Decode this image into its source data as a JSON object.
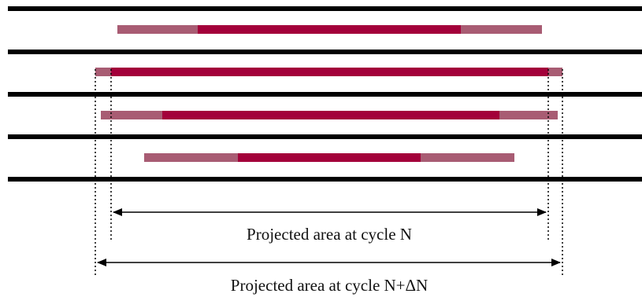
{
  "colors": {
    "plate": "#000000",
    "crack_current": "#a3003a",
    "crack_growth": "#a85c73",
    "dimension": "#000000",
    "caption": "#111111"
  },
  "layers": [
    {
      "name": "layer-1",
      "growth_left": true,
      "growth_right": true
    },
    {
      "name": "layer-2",
      "growth_left": true,
      "growth_right": true
    },
    {
      "name": "layer-3",
      "growth_left": true,
      "growth_right": true
    },
    {
      "name": "layer-4",
      "growth_left": true,
      "growth_right": true
    }
  ],
  "annotations": {
    "cycle_n_label": "Projected area at cycle N",
    "cycle_n_dn_label": "Projected area at cycle N+ΔN"
  }
}
